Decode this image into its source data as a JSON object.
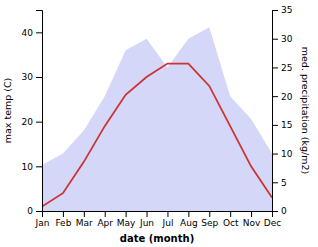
{
  "chart_data": {
    "type": "line",
    "categories": [
      "Jan",
      "Feb",
      "Mar",
      "Apr",
      "May",
      "Jun",
      "Jul",
      "Aug",
      "Sep",
      "Oct",
      "Nov",
      "Dec"
    ],
    "x_label": "date (month)",
    "y_label": "max temp (C)",
    "y2_label": "med. precipitation (kg/m2)",
    "series": [
      {
        "type": "area",
        "axis": "y2",
        "color": "#c5caf5",
        "values": [
          8,
          10,
          14,
          20,
          28,
          30,
          25,
          30,
          32,
          20,
          16,
          10
        ]
      },
      {
        "type": "line",
        "color": "#cc3333",
        "values": [
          1,
          4,
          11,
          19,
          26,
          30,
          33,
          33,
          28,
          19,
          10,
          3
        ]
      }
    ],
    "ylim": [
      0,
      45
    ],
    "yticks": [
      0,
      10,
      20,
      30,
      40
    ],
    "y2lim": [
      0,
      35
    ],
    "y2ticks": [
      0,
      5,
      10,
      15,
      20,
      25,
      30,
      35
    ]
  }
}
